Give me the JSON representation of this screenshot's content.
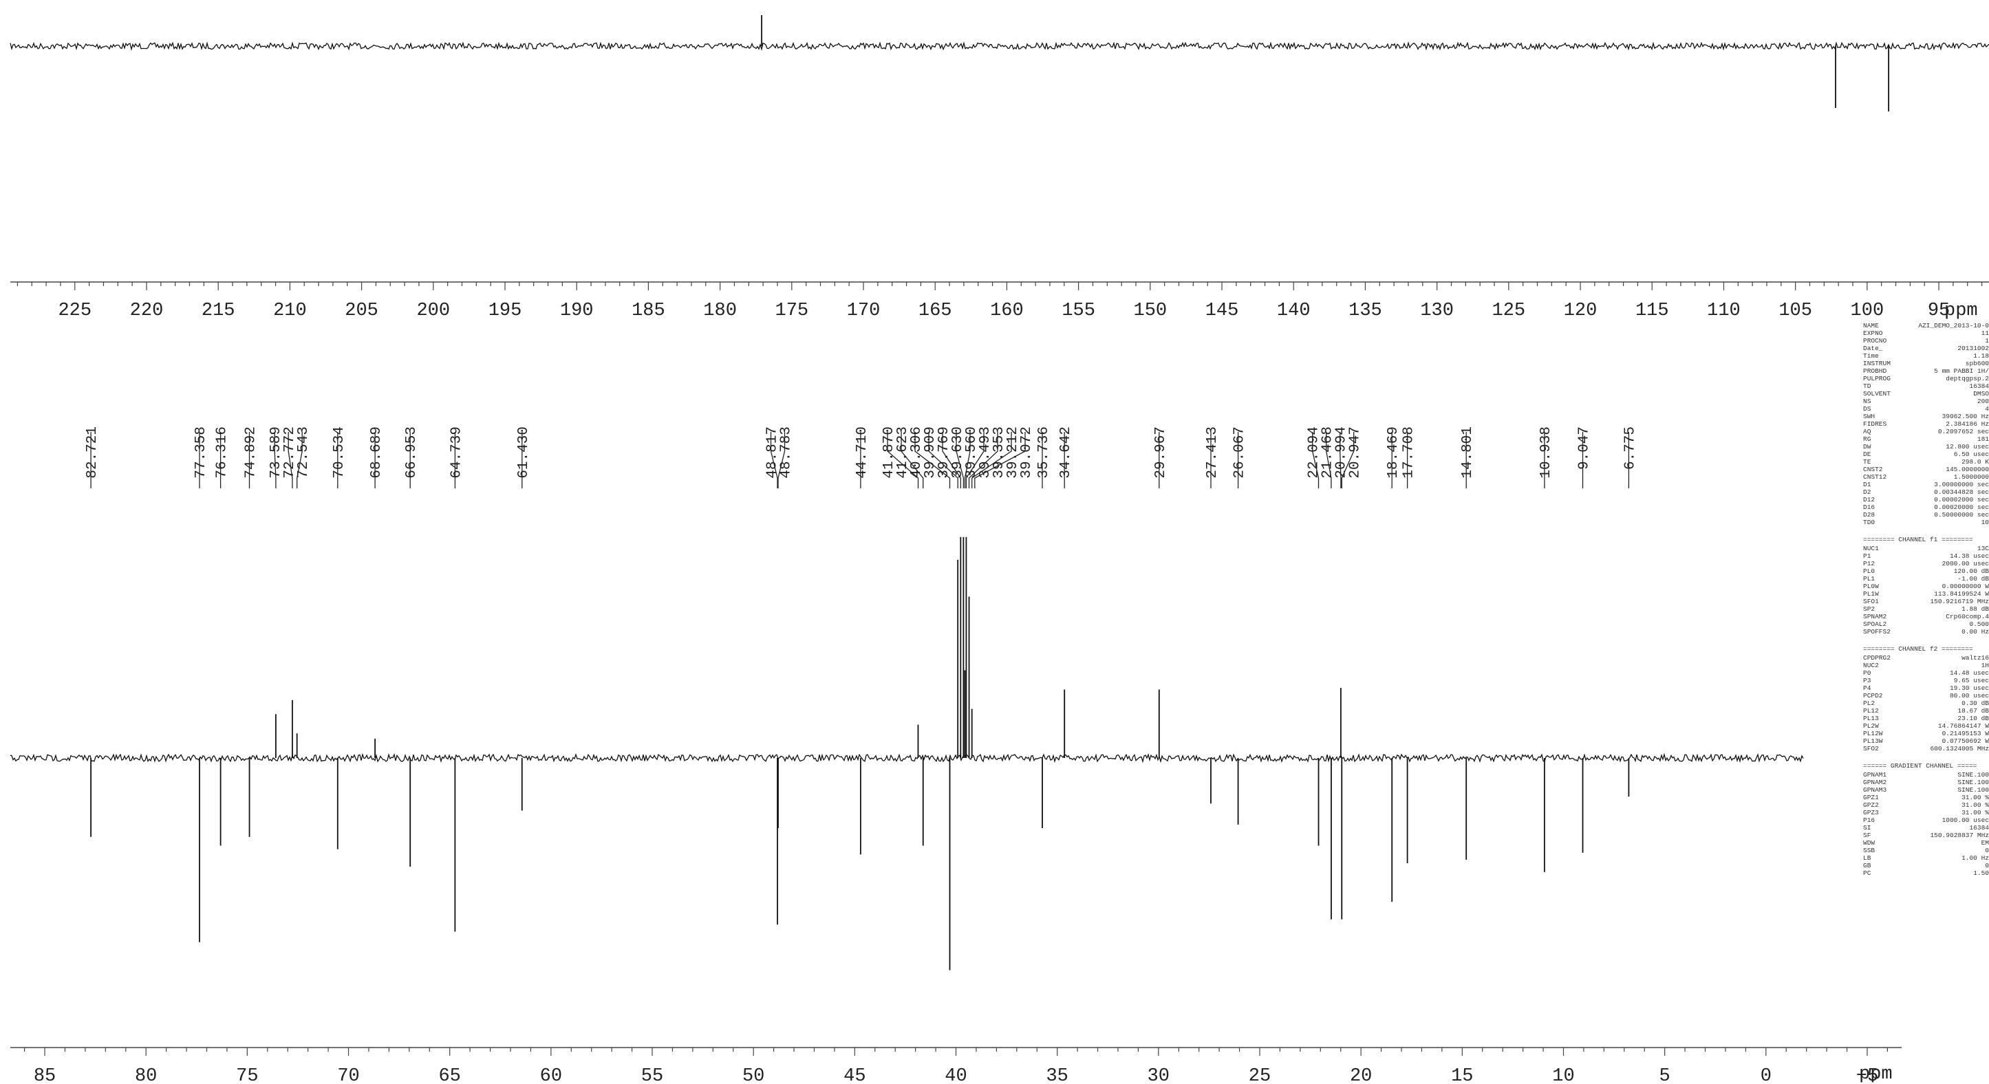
{
  "chart_data": [
    {
      "type": "line",
      "name_hint": "",
      "xlabel": "ppm",
      "x_axis_reversed": true,
      "xlim": [
        229.5,
        91.5
      ],
      "ticks_major": [
        225,
        220,
        215,
        210,
        205,
        200,
        195,
        190,
        185,
        180,
        175,
        170,
        165,
        160,
        155,
        150,
        145,
        140,
        135,
        130,
        125,
        120,
        115,
        110,
        105,
        100,
        95
      ],
      "tick_labels": [
        "225",
        "220",
        "215",
        "210",
        "205",
        "200",
        "195",
        "190",
        "185",
        "180",
        "175",
        "170",
        "165",
        "160",
        "155",
        "150",
        "145",
        "140",
        "135",
        "130",
        "125",
        "120",
        "115",
        "110",
        "105",
        "100",
        "95"
      ],
      "unit_label": "ppm",
      "peaks": [
        {
          "ppm": 177.1,
          "intensity": 0.45
        },
        {
          "ppm": 102.2,
          "intensity": -0.9
        },
        {
          "ppm": 98.5,
          "intensity": -0.95
        }
      ]
    },
    {
      "type": "line",
      "xlabel": "ppm",
      "x_axis_reversed": true,
      "xlim": [
        86.7,
        -6.7
      ],
      "ticks_major": [
        85,
        80,
        75,
        70,
        65,
        60,
        55,
        50,
        45,
        40,
        35,
        30,
        25,
        20,
        15,
        10,
        5,
        0,
        -5
      ],
      "tick_labels": [
        "85",
        "80",
        "75",
        "70",
        "65",
        "60",
        "55",
        "50",
        "45",
        "40",
        "35",
        "30",
        "25",
        "20",
        "15",
        "10",
        "5",
        "0",
        "−5"
      ],
      "unit_label": "ppm",
      "peak_labels": [
        "82.721",
        "77.358",
        "76.316",
        "74.892",
        "73.589",
        "72.772",
        "72.543",
        "70.534",
        "68.689",
        "66.953",
        "64.739",
        "61.430",
        "48.817",
        "48.783",
        "44.710",
        "41.870",
        "41.623",
        "40.306",
        "39.909",
        "39.769",
        "39.630",
        "39.560",
        "39.493",
        "39.353",
        "39.212",
        "39.072",
        "35.736",
        "34.642",
        "29.967",
        "27.413",
        "26.067",
        "22.094",
        "21.468",
        "20.994",
        "20.947",
        "18.469",
        "17.708",
        "14.801",
        "10.938",
        "9.047",
        "6.775"
      ],
      "peaks": [
        {
          "ppm": 82.721,
          "intensity": -0.45
        },
        {
          "ppm": 77.358,
          "intensity": -1.05
        },
        {
          "ppm": 76.316,
          "intensity": -0.5
        },
        {
          "ppm": 74.892,
          "intensity": -0.45
        },
        {
          "ppm": 73.589,
          "intensity": 0.25
        },
        {
          "ppm": 72.772,
          "intensity": 0.33
        },
        {
          "ppm": 72.543,
          "intensity": 0.14
        },
        {
          "ppm": 70.534,
          "intensity": -0.52
        },
        {
          "ppm": 68.689,
          "intensity": 0.11
        },
        {
          "ppm": 66.953,
          "intensity": -0.62
        },
        {
          "ppm": 64.739,
          "intensity": -0.99
        },
        {
          "ppm": 61.43,
          "intensity": -0.3
        },
        {
          "ppm": 48.817,
          "intensity": -0.95
        },
        {
          "ppm": 48.783,
          "intensity": -0.4
        },
        {
          "ppm": 44.71,
          "intensity": -0.55
        },
        {
          "ppm": 41.87,
          "intensity": 0.19
        },
        {
          "ppm": 41.623,
          "intensity": -0.5
        },
        {
          "ppm": 40.306,
          "intensity": -1.21
        },
        {
          "ppm": 39.909,
          "intensity": 1.13
        },
        {
          "ppm": 39.769,
          "intensity": 1.26
        },
        {
          "ppm": 39.63,
          "intensity": 1.26
        },
        {
          "ppm": 39.56,
          "intensity": 0.5
        },
        {
          "ppm": 39.493,
          "intensity": 1.26
        },
        {
          "ppm": 39.353,
          "intensity": 0.92
        },
        {
          "ppm": 39.212,
          "intensity": 0.28
        },
        {
          "ppm": 39.072,
          "intensity": 0.0
        },
        {
          "ppm": 35.736,
          "intensity": -0.4
        },
        {
          "ppm": 34.642,
          "intensity": 0.39
        },
        {
          "ppm": 29.967,
          "intensity": 0.39
        },
        {
          "ppm": 27.413,
          "intensity": -0.26
        },
        {
          "ppm": 26.067,
          "intensity": -0.38
        },
        {
          "ppm": 22.094,
          "intensity": -0.5
        },
        {
          "ppm": 21.468,
          "intensity": -0.92
        },
        {
          "ppm": 20.994,
          "intensity": 0.4
        },
        {
          "ppm": 20.947,
          "intensity": -0.92
        },
        {
          "ppm": 18.469,
          "intensity": -0.82
        },
        {
          "ppm": 17.708,
          "intensity": -0.6
        },
        {
          "ppm": 14.801,
          "intensity": -0.58
        },
        {
          "ppm": 10.938,
          "intensity": -0.65
        },
        {
          "ppm": 9.047,
          "intensity": -0.54
        },
        {
          "ppm": 6.775,
          "intensity": -0.22
        }
      ]
    }
  ],
  "parameters": {
    "block1": [
      [
        "NAME",
        "AZI_DEMO_2013-10-0"
      ],
      [
        "EXPNO",
        "11"
      ],
      [
        "PROCNO",
        "1"
      ],
      [
        "Date_",
        "20131002"
      ],
      [
        "Time",
        "1.18"
      ],
      [
        "INSTRUM",
        "spb600"
      ],
      [
        "PROBHD",
        "5 mm PABBI 1H/"
      ],
      [
        "PULPROG",
        "deptqgpsp.2"
      ],
      [
        "TD",
        "16384"
      ],
      [
        "SOLVENT",
        "DMSO"
      ],
      [
        "NS",
        "200"
      ],
      [
        "DS",
        "4"
      ],
      [
        "SWH",
        "39062.500 Hz"
      ],
      [
        "FIDRES",
        "2.384186 Hz"
      ],
      [
        "AQ",
        "0.2097652 sec"
      ],
      [
        "RG",
        "181"
      ],
      [
        "DW",
        "12.800 usec"
      ],
      [
        "DE",
        "6.50 usec"
      ],
      [
        "TE",
        "298.0 K"
      ],
      [
        "CNST2",
        "145.0000000"
      ],
      [
        "CNST12",
        "1.5000000"
      ],
      [
        "D1",
        "3.00000000 sec"
      ],
      [
        "D2",
        "0.00344828 sec"
      ],
      [
        "D12",
        "0.00002000 sec"
      ],
      [
        "D16",
        "0.00020000 sec"
      ],
      [
        "D28",
        "0.50000000 sec"
      ],
      [
        "TD0",
        "10"
      ]
    ],
    "header2": "======== CHANNEL f1 ========",
    "block2": [
      [
        "NUC1",
        "13C"
      ],
      [
        "P1",
        "14.38 usec"
      ],
      [
        "P12",
        "2000.00 usec"
      ],
      [
        "PL0",
        "120.00 dB"
      ],
      [
        "PL1",
        "-1.00 dB"
      ],
      [
        "PL0W",
        "0.00000000 W"
      ],
      [
        "PL1W",
        "113.84199524 W"
      ],
      [
        "SFO1",
        "150.9216719 MHz"
      ],
      [
        "SP2",
        "1.88 dB"
      ],
      [
        "SPNAM2",
        "Crp60comp.4"
      ],
      [
        "SPOAL2",
        "0.500"
      ],
      [
        "SPOFFS2",
        "0.00 Hz"
      ]
    ],
    "header3": "======== CHANNEL f2 ========",
    "block3": [
      [
        "CPDPRG2",
        "waltz16"
      ],
      [
        "NUC2",
        "1H"
      ],
      [
        "P0",
        "14.48 usec"
      ],
      [
        "P3",
        "9.65 usec"
      ],
      [
        "P4",
        "19.30 usec"
      ],
      [
        "PCPD2",
        "80.00 usec"
      ],
      [
        "PL2",
        "0.30 dB"
      ],
      [
        "PL12",
        "18.67 dB"
      ],
      [
        "PL13",
        "23.10 dB"
      ],
      [
        "PL2W",
        "14.76864147 W"
      ],
      [
        "PL12W",
        "0.21495153 W"
      ],
      [
        "PL13W",
        "0.07750692 W"
      ],
      [
        "SFO2",
        "600.1324005 MHz"
      ]
    ],
    "header4": "====== GRADIENT CHANNEL =====",
    "block4": [
      [
        "GPNAM1",
        "SINE.100"
      ],
      [
        "GPNAM2",
        "SINE.100"
      ],
      [
        "GPNAM3",
        "SINE.100"
      ],
      [
        "GPZ1",
        "31.00 %"
      ],
      [
        "GPZ2",
        "31.00 %"
      ],
      [
        "GPZ3",
        "31.00 %"
      ],
      [
        "P16",
        "1000.00 usec"
      ],
      [
        "SI",
        "16384"
      ],
      [
        "SF",
        "150.9028837 MHz"
      ],
      [
        "WDW",
        "EM"
      ],
      [
        "SSB",
        "0"
      ],
      [
        "LB",
        "1.00 Hz"
      ],
      [
        "GB",
        "0"
      ],
      [
        "PC",
        "1.50"
      ]
    ]
  }
}
